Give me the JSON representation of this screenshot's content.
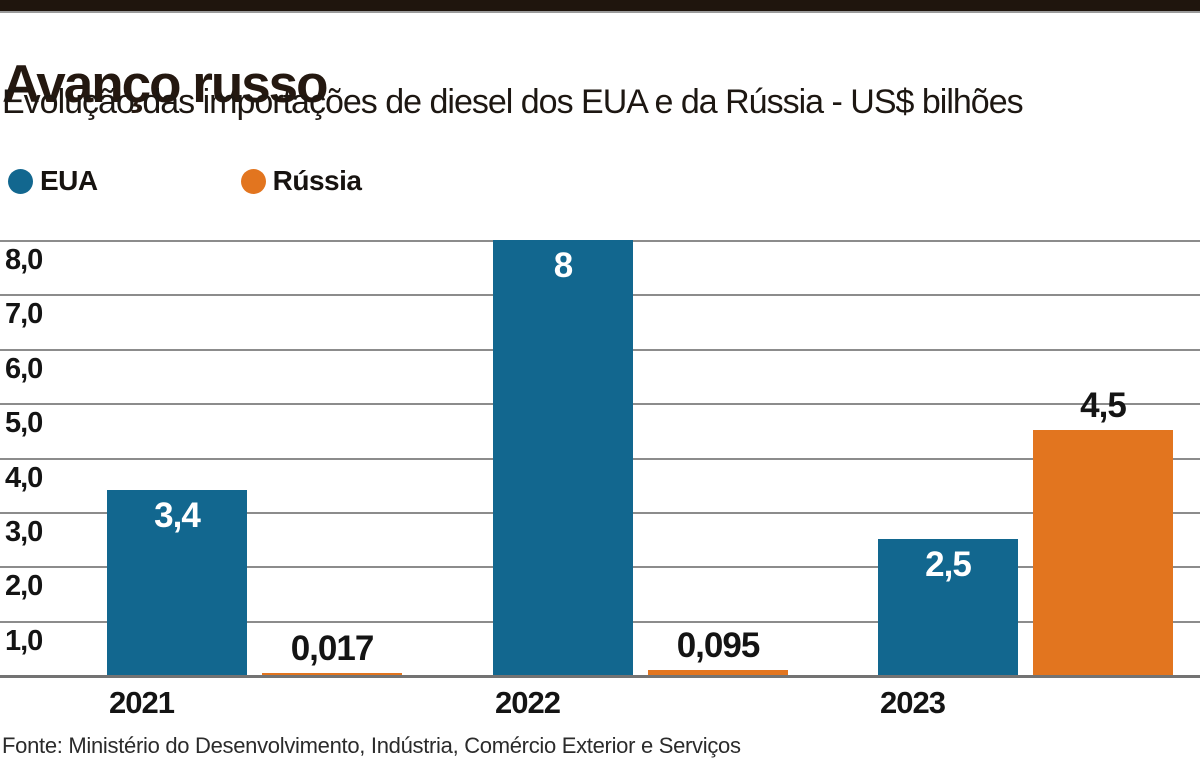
{
  "header": {
    "title": "Avanço russo",
    "subtitle": "Evolução das importações de diesel dos EUA e da Rússia - US$ bilhões"
  },
  "footer": {
    "source": "Fonte: Ministério do Desenvolvimento, Indústria, Comércio Exterior e Serviços"
  },
  "colors": {
    "top_bar": "#1F150D",
    "title_text": "#241810",
    "grid_line": "#8C8C8C",
    "axis_line": "#737373",
    "eua_blue": "#12678F",
    "russia_orange": "#E2751F"
  },
  "legend": {
    "items": [
      {
        "label": "EUA",
        "color": "#12678F"
      },
      {
        "label": "Rússia",
        "color": "#E2751F"
      }
    ]
  },
  "chart_data": {
    "type": "bar",
    "title": "Avanço russo",
    "subtitle": "Evolução das importações de diesel dos EUA e da Rússia - US$ bilhões",
    "unit": "US$ bilhões",
    "categories": [
      "2021",
      "2022",
      "2023"
    ],
    "series": [
      {
        "name": "EUA",
        "color": "#12678F",
        "values": [
          3.4,
          8,
          2.5
        ],
        "value_labels": [
          "3,4",
          "8",
          "2,5"
        ],
        "label_placement": "inside-top",
        "label_color": "#FFFFFF"
      },
      {
        "name": "Rússia",
        "color": "#E2751F",
        "values": [
          0.017,
          0.095,
          4.5
        ],
        "value_labels": [
          "0,017",
          "0,095",
          "4,5"
        ],
        "label_placement": "above",
        "label_color": "#141414"
      }
    ],
    "ylim": [
      0,
      8
    ],
    "yticks": [
      1,
      2,
      3,
      4,
      5,
      6,
      7,
      8
    ],
    "ytick_labels": [
      "1,0",
      "2,0",
      "3,0",
      "4,0",
      "5,0",
      "6,0",
      "7,0",
      "8,0"
    ],
    "grid": true,
    "legend_position": "top-left",
    "source": "Fonte: Ministério do Desenvolvimento, Indústria, Comércio Exterior e Serviços"
  }
}
